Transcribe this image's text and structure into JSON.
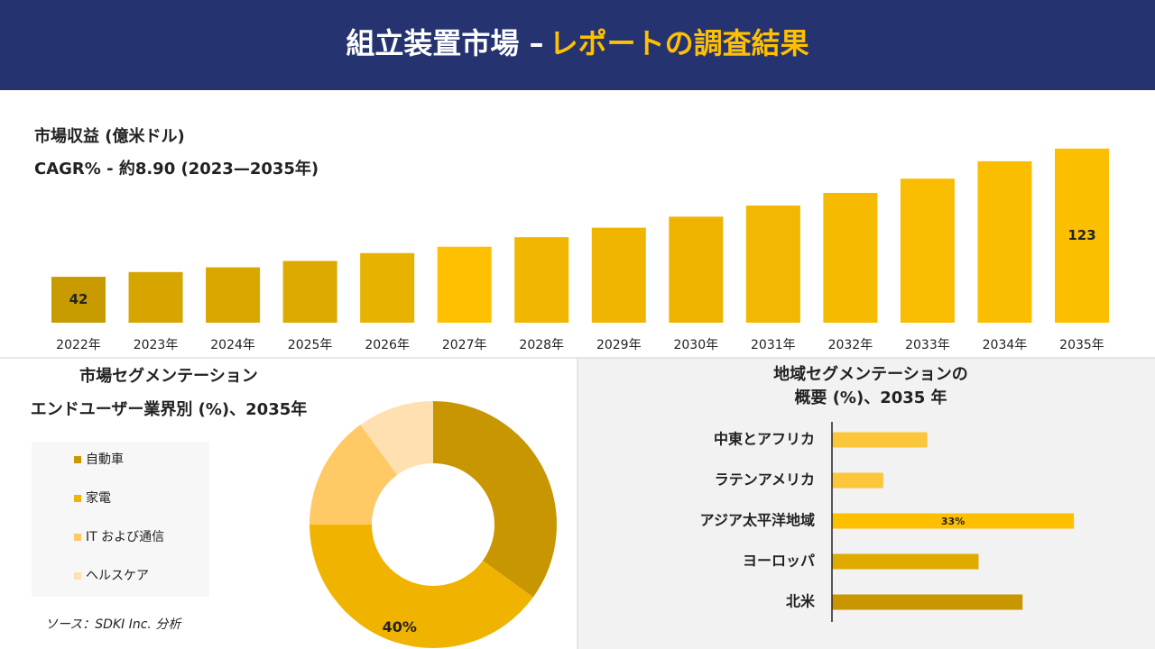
{
  "header": {
    "title": "組立装置市場 –",
    "highlight": "レポートの調査結果"
  },
  "source": "ソース：SDKI Inc. 分析",
  "chart_data": [
    {
      "type": "bar",
      "title": "市場収益 (億米ドル)",
      "subtitle": "CAGR% - 約8.90 (2023—2035年)",
      "categories": [
        "2022年",
        "2023年",
        "2024年",
        "2025年",
        "2026年",
        "2027年",
        "2028年",
        "2029年",
        "2030年",
        "2031年",
        "2032年",
        "2033年",
        "2034年",
        "2035年"
      ],
      "values": [
        42,
        45,
        48,
        52,
        57,
        61,
        67,
        73,
        80,
        87,
        95,
        104,
        115,
        123
      ],
      "value_labels": [
        "42",
        null,
        null,
        null,
        null,
        null,
        null,
        null,
        null,
        null,
        null,
        null,
        null,
        "123"
      ],
      "colors": [
        "#c89b00",
        "#d6a500",
        "#d9a800",
        "#dcaa00",
        "#e8b300",
        "#fec000",
        "#f0b600",
        "#efb500",
        "#eeb400",
        "#f2b700",
        "#f6ba00",
        "#f8bc00",
        "#fabd00",
        "#fcbf00"
      ],
      "ylim": [
        13,
        140
      ]
    },
    {
      "type": "donut",
      "title": "市場セグメンテーション",
      "subtitle": "エンドユーザー業界別 (%)、2035年",
      "categories": [
        "自動車",
        "家電",
        "IT および通信",
        "ヘルスケア"
      ],
      "values": [
        35,
        40,
        15,
        10
      ],
      "value_labels": [
        null,
        "40%",
        null,
        null
      ],
      "colors": [
        "#c89600",
        "#f0b400",
        "#ffc966",
        "#ffe0b0"
      ]
    },
    {
      "type": "bar",
      "horizontal": true,
      "title": [
        "地域セグメンテーションの",
        "概要 (%)、2035 年"
      ],
      "categories": [
        "中東とアフリカ",
        "ラテンアメリカ",
        "アジア太平洋地域",
        "ヨーロッパ",
        "北米"
      ],
      "values": [
        13,
        7,
        33,
        20,
        26
      ],
      "value_labels": [
        null,
        null,
        "33%",
        null,
        null
      ],
      "colors": [
        "#fcc63a",
        "#fcc63a",
        "#fdbf00",
        "#e0aa00",
        "#c89600"
      ],
      "xlim": [
        0,
        40
      ]
    }
  ]
}
